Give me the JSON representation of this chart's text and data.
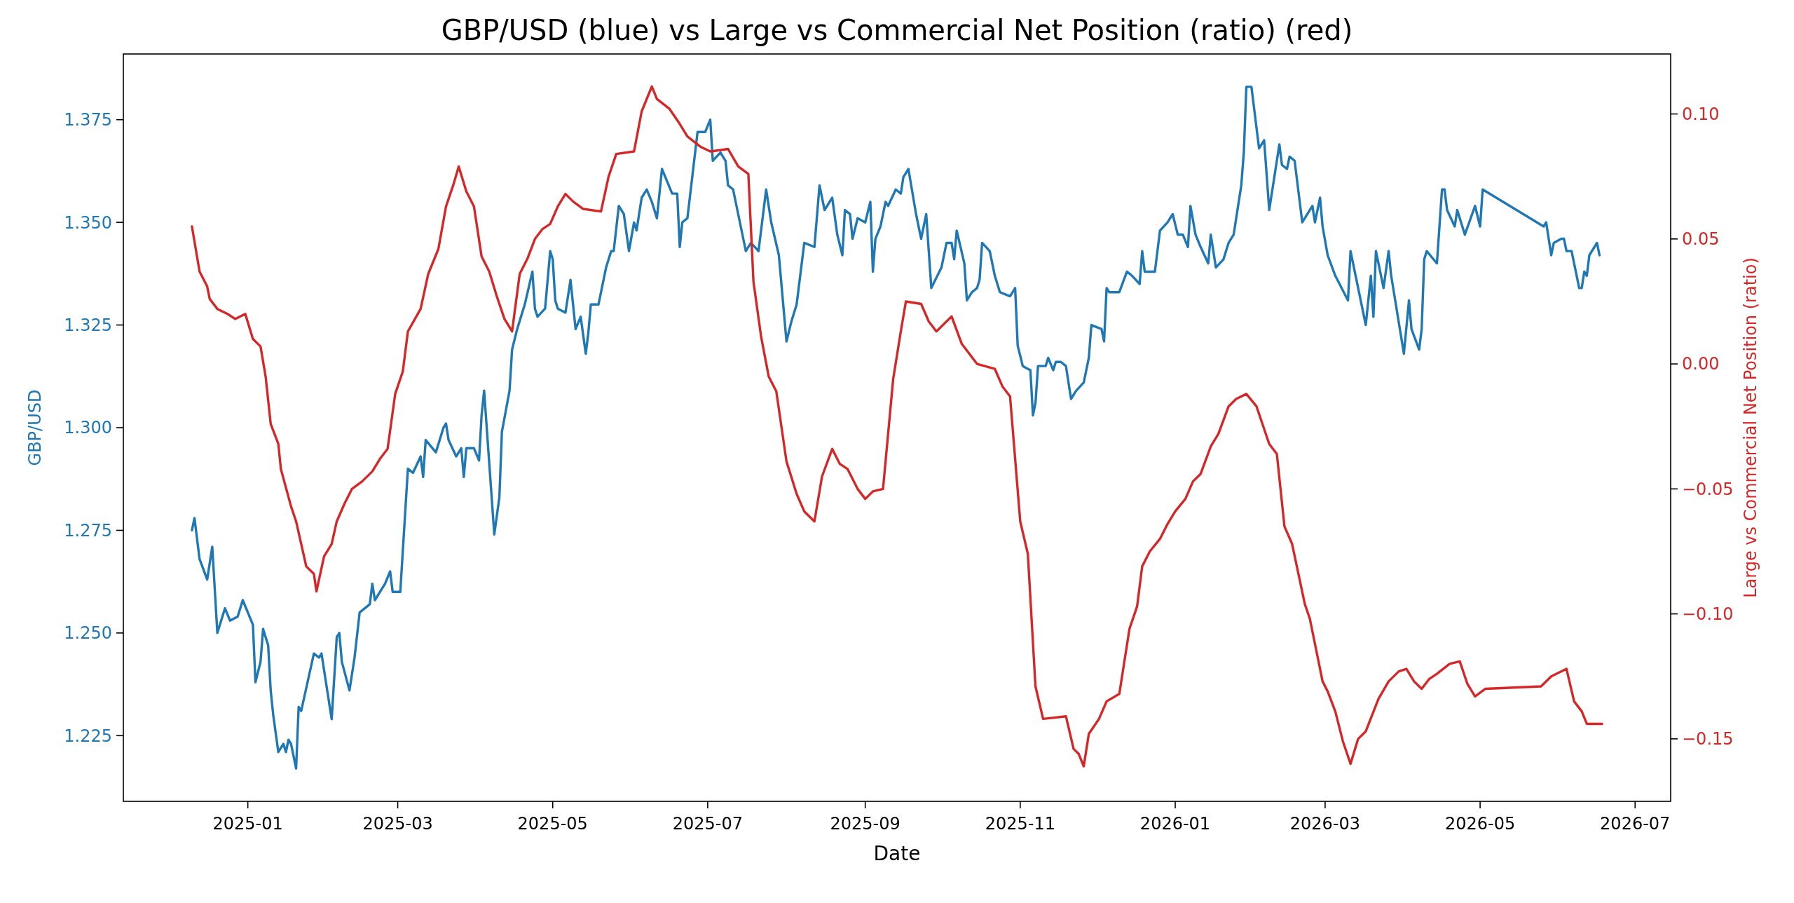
{
  "chart_data": {
    "type": "line",
    "title": "GBP/USD (blue) vs Large vs Commercial Net Position (ratio) (red)",
    "xlabel": "Date",
    "ylabel": "GBP/USD",
    "y2label": "Large vs Commercial Net Position (ratio)",
    "xlim": [
      "2024-11-13",
      "2026-07-15"
    ],
    "xticks": [
      "2025-01",
      "2025-03",
      "2025-05",
      "2025-07",
      "2025-09",
      "2025-11",
      "2026-01",
      "2026-03",
      "2026-05",
      "2026-07"
    ],
    "ylim": [
      1.209,
      1.391
    ],
    "yticks": [
      {
        "value": 1.225,
        "label": "1.225"
      },
      {
        "value": 1.25,
        "label": "1.250"
      },
      {
        "value": 1.275,
        "label": "1.275"
      },
      {
        "value": 1.3,
        "label": "1.300"
      },
      {
        "value": 1.325,
        "label": "1.325"
      },
      {
        "value": 1.35,
        "label": "1.350"
      },
      {
        "value": 1.375,
        "label": "1.375"
      }
    ],
    "y2lim": [
      -0.175,
      0.124
    ],
    "y2ticks": [
      {
        "value": -0.15,
        "label": "−0.15"
      },
      {
        "value": -0.1,
        "label": "−0.10"
      },
      {
        "value": -0.05,
        "label": "−0.05"
      },
      {
        "value": 0,
        "label": "0.00"
      },
      {
        "value": 0.05,
        "label": "0.05"
      },
      {
        "value": 0.1,
        "label": "0.10"
      }
    ],
    "grid": false,
    "series": [
      {
        "color": "#1f77b4",
        "x": [
          "2024-12-10",
          "2024-12-11",
          "2024-12-13",
          "2024-12-16",
          "2024-12-18",
          "2024-12-20",
          "2024-12-23",
          "2024-12-25",
          "2024-12-28",
          "2024-12-30",
          "2025-01-03",
          "2025-01-04",
          "2025-01-06",
          "2025-01-07",
          "2025-01-09",
          "2025-01-10",
          "2025-01-11",
          "2025-01-13",
          "2025-01-15",
          "2025-01-16",
          "2025-01-17",
          "2025-01-18",
          "2025-01-20",
          "2025-01-21",
          "2025-01-22",
          "2025-01-27",
          "2025-01-29",
          "2025-01-30",
          "2025-02-03",
          "2025-02-05",
          "2025-02-06",
          "2025-02-07",
          "2025-02-10",
          "2025-02-12",
          "2025-02-14",
          "2025-02-18",
          "2025-02-19",
          "2025-02-20",
          "2025-02-24",
          "2025-02-26",
          "2025-02-27",
          "2025-03-02",
          "2025-03-05",
          "2025-03-07",
          "2025-03-10",
          "2025-03-11",
          "2025-03-12",
          "2025-03-16",
          "2025-03-19",
          "2025-03-20",
          "2025-03-21",
          "2025-03-24",
          "2025-03-26",
          "2025-03-27",
          "2025-03-28",
          "2025-03-31",
          "2025-04-02",
          "2025-04-03",
          "2025-04-04",
          "2025-04-08",
          "2025-04-10",
          "2025-04-11",
          "2025-04-14",
          "2025-04-15",
          "2025-04-17",
          "2025-04-20",
          "2025-04-23",
          "2025-04-24",
          "2025-04-25",
          "2025-04-28",
          "2025-04-30",
          "2025-05-01",
          "2025-05-02",
          "2025-05-03",
          "2025-05-06",
          "2025-05-08",
          "2025-05-10",
          "2025-05-12",
          "2025-05-14",
          "2025-05-15",
          "2025-05-16",
          "2025-05-19",
          "2025-05-22",
          "2025-05-24",
          "2025-05-25",
          "2025-05-27",
          "2025-05-29",
          "2025-05-31",
          "2025-06-02",
          "2025-06-03",
          "2025-06-05",
          "2025-06-07",
          "2025-06-09",
          "2025-06-11",
          "2025-06-13",
          "2025-06-17",
          "2025-06-19",
          "2025-06-20",
          "2025-06-21",
          "2025-06-23",
          "2025-06-27",
          "2025-06-30",
          "2025-07-02",
          "2025-07-03",
          "2025-07-06",
          "2025-07-08",
          "2025-07-09",
          "2025-07-11",
          "2025-07-14",
          "2025-07-16",
          "2025-07-18",
          "2025-07-21",
          "2025-07-24",
          "2025-07-26",
          "2025-07-29",
          "2025-07-30",
          "2025-08-01",
          "2025-08-03",
          "2025-08-05",
          "2025-08-08",
          "2025-08-12",
          "2025-08-14",
          "2025-08-16",
          "2025-08-19",
          "2025-08-21",
          "2025-08-23",
          "2025-08-24",
          "2025-08-26",
          "2025-08-27",
          "2025-08-29",
          "2025-09-01",
          "2025-09-03",
          "2025-09-04",
          "2025-09-05",
          "2025-09-07",
          "2025-09-09",
          "2025-09-10",
          "2025-09-13",
          "2025-09-15",
          "2025-09-16",
          "2025-09-18",
          "2025-09-21",
          "2025-09-23",
          "2025-09-25",
          "2025-09-27",
          "2025-10-01",
          "2025-10-03",
          "2025-10-05",
          "2025-10-06",
          "2025-10-07",
          "2025-10-10",
          "2025-10-11",
          "2025-10-13",
          "2025-10-15",
          "2025-10-16",
          "2025-10-17",
          "2025-10-20",
          "2025-10-22",
          "2025-10-24",
          "2025-10-28",
          "2025-10-30",
          "2025-10-31",
          "2025-11-02",
          "2025-11-05",
          "2025-11-06",
          "2025-11-07",
          "2025-11-08",
          "2025-11-11",
          "2025-11-12",
          "2025-11-14",
          "2025-11-15",
          "2025-11-17",
          "2025-11-19",
          "2025-11-21",
          "2025-11-23",
          "2025-11-26",
          "2025-11-28",
          "2025-11-29",
          "2025-12-03",
          "2025-12-04",
          "2025-12-05",
          "2025-12-06",
          "2025-12-10",
          "2025-12-13",
          "2025-12-15",
          "2025-12-18",
          "2025-12-19",
          "2025-12-20",
          "2025-12-24",
          "2025-12-26",
          "2025-12-29",
          "2025-12-31",
          "2026-01-02",
          "2026-01-04",
          "2026-01-06",
          "2026-01-07",
          "2026-01-09",
          "2026-01-11",
          "2026-01-14",
          "2026-01-15",
          "2026-01-17",
          "2026-01-20",
          "2026-01-22",
          "2026-01-24",
          "2026-01-27",
          "2026-01-28",
          "2026-01-29",
          "2026-01-31",
          "2026-02-03",
          "2026-02-05",
          "2026-02-07",
          "2026-02-11",
          "2026-02-12",
          "2026-02-14",
          "2026-02-15",
          "2026-02-17",
          "2026-02-20",
          "2026-02-24",
          "2026-02-25",
          "2026-02-27",
          "2026-02-28",
          "2026-03-02",
          "2026-03-05",
          "2026-03-10",
          "2026-03-11",
          "2026-03-17",
          "2026-03-19",
          "2026-03-20",
          "2026-03-21",
          "2026-03-24",
          "2026-03-26",
          "2026-03-27",
          "2026-04-01",
          "2026-04-03",
          "2026-04-04",
          "2026-04-07",
          "2026-04-08",
          "2026-04-09",
          "2026-04-10",
          "2026-04-14",
          "2026-04-16",
          "2026-04-17",
          "2026-04-18",
          "2026-04-21",
          "2026-04-22",
          "2026-04-25",
          "2026-04-29",
          "2026-05-01",
          "2026-05-02",
          "2026-05-26",
          "2026-05-27",
          "2026-05-29",
          "2026-05-30",
          "2026-06-02",
          "2026-06-03",
          "2026-06-04",
          "2026-06-06",
          "2026-06-09",
          "2026-06-10",
          "2026-06-11",
          "2026-06-12",
          "2026-06-13",
          "2026-06-16",
          "2026-06-17"
        ],
        "values": [
          1.275,
          1.278,
          1.268,
          1.263,
          1.271,
          1.25,
          1.256,
          1.253,
          1.254,
          1.258,
          1.252,
          1.238,
          1.243,
          1.251,
          1.247,
          1.236,
          1.23,
          1.221,
          1.223,
          1.221,
          1.224,
          1.223,
          1.217,
          1.232,
          1.231,
          1.245,
          1.244,
          1.245,
          1.229,
          1.249,
          1.25,
          1.243,
          1.236,
          1.244,
          1.255,
          1.257,
          1.262,
          1.258,
          1.262,
          1.265,
          1.26,
          1.26,
          1.29,
          1.289,
          1.293,
          1.288,
          1.297,
          1.294,
          1.3,
          1.301,
          1.297,
          1.293,
          1.295,
          1.288,
          1.295,
          1.295,
          1.292,
          1.303,
          1.309,
          1.274,
          1.283,
          1.299,
          1.309,
          1.319,
          1.324,
          1.33,
          1.338,
          1.329,
          1.327,
          1.329,
          1.343,
          1.341,
          1.331,
          1.329,
          1.328,
          1.336,
          1.324,
          1.327,
          1.318,
          1.323,
          1.33,
          1.33,
          1.339,
          1.343,
          1.343,
          1.354,
          1.352,
          1.343,
          1.35,
          1.348,
          1.356,
          1.358,
          1.355,
          1.351,
          1.363,
          1.357,
          1.357,
          1.344,
          1.35,
          1.351,
          1.372,
          1.372,
          1.375,
          1.365,
          1.367,
          1.365,
          1.359,
          1.358,
          1.349,
          1.343,
          1.345,
          1.343,
          1.358,
          1.35,
          1.342,
          1.335,
          1.321,
          1.326,
          1.33,
          1.345,
          1.344,
          1.359,
          1.353,
          1.356,
          1.347,
          1.342,
          1.353,
          1.352,
          1.346,
          1.351,
          1.35,
          1.355,
          1.338,
          1.346,
          1.349,
          1.355,
          1.354,
          1.358,
          1.357,
          1.361,
          1.363,
          1.352,
          1.346,
          1.352,
          1.334,
          1.339,
          1.345,
          1.345,
          1.341,
          1.348,
          1.34,
          1.331,
          1.333,
          1.334,
          1.336,
          1.345,
          1.343,
          1.337,
          1.333,
          1.332,
          1.334,
          1.32,
          1.315,
          1.314,
          1.303,
          1.306,
          1.315,
          1.315,
          1.317,
          1.314,
          1.316,
          1.316,
          1.315,
          1.307,
          1.309,
          1.311,
          1.317,
          1.325,
          1.324,
          1.321,
          1.334,
          1.333,
          1.333,
          1.338,
          1.337,
          1.335,
          1.343,
          1.338,
          1.338,
          1.348,
          1.35,
          1.352,
          1.347,
          1.347,
          1.344,
          1.354,
          1.347,
          1.344,
          1.34,
          1.347,
          1.339,
          1.341,
          1.345,
          1.347,
          1.359,
          1.367,
          1.383,
          1.383,
          1.368,
          1.37,
          1.353,
          1.369,
          1.364,
          1.363,
          1.366,
          1.365,
          1.35,
          1.354,
          1.35,
          1.356,
          1.349,
          1.342,
          1.337,
          1.331,
          1.343,
          1.325,
          1.337,
          1.327,
          1.343,
          1.334,
          1.343,
          1.337,
          1.318,
          1.331,
          1.324,
          1.319,
          1.324,
          1.341,
          1.343,
          1.34,
          1.358,
          1.358,
          1.353,
          1.349,
          1.353,
          1.347,
          1.354,
          1.349,
          1.358,
          1.349,
          1.35,
          1.342,
          1.345,
          1.346,
          1.346,
          1.343,
          1.343,
          1.334,
          1.334,
          1.338,
          1.337,
          1.342,
          1.345,
          1.342
        ]
      },
      {
        "color": "#d62728",
        "axis": "y2",
        "x": [
          "2024-12-10",
          "2024-12-13",
          "2024-12-16",
          "2024-12-17",
          "2024-12-20",
          "2024-12-24",
          "2024-12-27",
          "2024-12-31",
          "2025-01-03",
          "2025-01-06",
          "2025-01-08",
          "2025-01-10",
          "2025-01-13",
          "2025-01-14",
          "2025-01-18",
          "2025-01-20",
          "2025-01-24",
          "2025-01-27",
          "2025-01-28",
          "2025-01-31",
          "2025-02-03",
          "2025-02-05",
          "2025-02-08",
          "2025-02-11",
          "2025-02-15",
          "2025-02-19",
          "2025-02-22",
          "2025-02-25",
          "2025-02-28",
          "2025-03-03",
          "2025-03-05",
          "2025-03-10",
          "2025-03-13",
          "2025-03-17",
          "2025-03-20",
          "2025-03-23",
          "2025-03-25",
          "2025-03-28",
          "2025-03-31",
          "2025-04-03",
          "2025-04-06",
          "2025-04-09",
          "2025-04-12",
          "2025-04-15",
          "2025-04-18",
          "2025-04-21",
          "2025-04-24",
          "2025-04-27",
          "2025-04-30",
          "2025-05-03",
          "2025-05-06",
          "2025-05-09",
          "2025-05-13",
          "2025-05-20",
          "2025-05-23",
          "2025-05-26",
          "2025-06-02",
          "2025-06-05",
          "2025-06-09",
          "2025-06-11",
          "2025-06-16",
          "2025-06-20",
          "2025-06-23",
          "2025-06-28",
          "2025-07-02",
          "2025-07-09",
          "2025-07-13",
          "2025-07-17",
          "2025-07-19",
          "2025-07-22",
          "2025-07-25",
          "2025-07-28",
          "2025-08-01",
          "2025-08-05",
          "2025-08-08",
          "2025-08-12",
          "2025-08-15",
          "2025-08-19",
          "2025-08-22",
          "2025-08-25",
          "2025-08-29",
          "2025-09-01",
          "2025-09-04",
          "2025-09-08",
          "2025-09-12",
          "2025-09-15",
          "2025-09-17",
          "2025-09-23",
          "2025-09-26",
          "2025-09-29",
          "2025-10-02",
          "2025-10-05",
          "2025-10-09",
          "2025-10-12",
          "2025-10-15",
          "2025-10-22",
          "2025-10-25",
          "2025-10-28",
          "2025-11-01",
          "2025-11-04",
          "2025-11-07",
          "2025-11-10",
          "2025-11-19",
          "2025-11-22",
          "2025-11-24",
          "2025-11-26",
          "2025-11-28",
          "2025-12-02",
          "2025-12-05",
          "2025-12-10",
          "2025-12-14",
          "2025-12-17",
          "2025-12-19",
          "2025-12-22",
          "2025-12-26",
          "2025-12-29",
          "2026-01-01",
          "2026-01-05",
          "2026-01-08",
          "2026-01-11",
          "2026-01-15",
          "2026-01-18",
          "2026-01-22",
          "2026-01-25",
          "2026-01-29",
          "2026-02-02",
          "2026-02-07",
          "2026-02-10",
          "2026-02-13",
          "2026-02-16",
          "2026-02-21",
          "2026-02-23",
          "2026-02-28",
          "2026-03-02",
          "2026-03-05",
          "2026-03-08",
          "2026-03-11",
          "2026-03-14",
          "2026-03-17",
          "2026-03-22",
          "2026-03-26",
          "2026-03-30",
          "2026-04-02",
          "2026-04-05",
          "2026-04-08",
          "2026-04-11",
          "2026-04-14",
          "2026-04-19",
          "2026-04-23",
          "2026-04-26",
          "2026-04-29",
          "2026-05-03",
          "2026-05-25",
          "2026-05-29",
          "2026-06-04",
          "2026-06-07",
          "2026-06-10",
          "2026-06-12",
          "2026-06-18"
        ],
        "values": [
          0.055,
          0.037,
          0.031,
          0.026,
          0.022,
          0.02,
          0.018,
          0.02,
          0.01,
          0.007,
          -0.005,
          -0.024,
          -0.032,
          -0.042,
          -0.057,
          -0.063,
          -0.081,
          -0.084,
          -0.091,
          -0.077,
          -0.072,
          -0.063,
          -0.056,
          -0.05,
          -0.047,
          -0.043,
          -0.038,
          -0.034,
          -0.012,
          -0.003,
          0.013,
          0.022,
          0.036,
          0.046,
          0.063,
          0.072,
          0.079,
          0.069,
          0.063,
          0.043,
          0.037,
          0.027,
          0.018,
          0.013,
          0.036,
          0.042,
          0.05,
          0.054,
          0.056,
          0.063,
          0.068,
          0.065,
          0.062,
          0.061,
          0.075,
          0.084,
          0.085,
          0.101,
          0.111,
          0.106,
          0.102,
          0.096,
          0.091,
          0.087,
          0.085,
          0.086,
          0.079,
          0.076,
          0.033,
          0.011,
          -0.005,
          -0.011,
          -0.039,
          -0.052,
          -0.059,
          -0.063,
          -0.045,
          -0.034,
          -0.04,
          -0.042,
          -0.05,
          -0.054,
          -0.051,
          -0.05,
          -0.006,
          0.013,
          0.025,
          0.024,
          0.017,
          0.013,
          0.016,
          0.019,
          0.008,
          0.004,
          0,
          -0.002,
          -0.009,
          -0.013,
          -0.063,
          -0.076,
          -0.129,
          -0.142,
          -0.141,
          -0.154,
          -0.156,
          -0.161,
          -0.148,
          -0.142,
          -0.135,
          -0.132,
          -0.106,
          -0.097,
          -0.081,
          -0.075,
          -0.07,
          -0.064,
          -0.059,
          -0.054,
          -0.047,
          -0.044,
          -0.033,
          -0.028,
          -0.017,
          -0.014,
          -0.012,
          -0.017,
          -0.032,
          -0.036,
          -0.065,
          -0.072,
          -0.096,
          -0.102,
          -0.127,
          -0.131,
          -0.139,
          -0.151,
          -0.16,
          -0.15,
          -0.147,
          -0.134,
          -0.127,
          -0.123,
          -0.122,
          -0.127,
          -0.13,
          -0.126,
          -0.124,
          -0.12,
          -0.119,
          -0.128,
          -0.133,
          -0.13,
          -0.129,
          -0.125,
          -0.122,
          -0.135,
          -0.139,
          -0.144,
          -0.144
        ]
      }
    ]
  }
}
